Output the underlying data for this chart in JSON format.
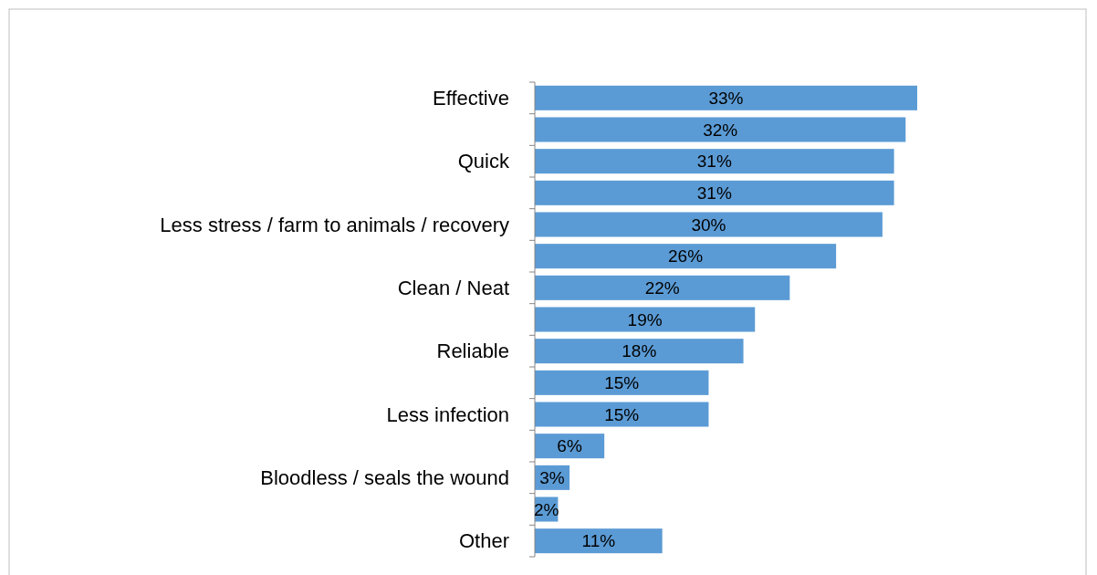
{
  "chart_data": {
    "type": "bar",
    "orientation": "horizontal",
    "categories": [
      "Effective",
      null,
      "Quick",
      null,
      "Less stress / farm to animals / recovery",
      null,
      "Clean / Neat",
      null,
      "Reliable",
      null,
      "Less infection",
      null,
      "Bloodless / seals the wound",
      null,
      "Other"
    ],
    "values": [
      33,
      32,
      31,
      31,
      30,
      26,
      22,
      19,
      18,
      15,
      15,
      6,
      3,
      2,
      11
    ],
    "value_labels": [
      "33%",
      "32%",
      "31%",
      "31%",
      "30%",
      "26%",
      "22%",
      "19%",
      "18%",
      "15%",
      "15%",
      "6%",
      "3%",
      "2%",
      "11%"
    ],
    "color": "#5b9bd5"
  }
}
